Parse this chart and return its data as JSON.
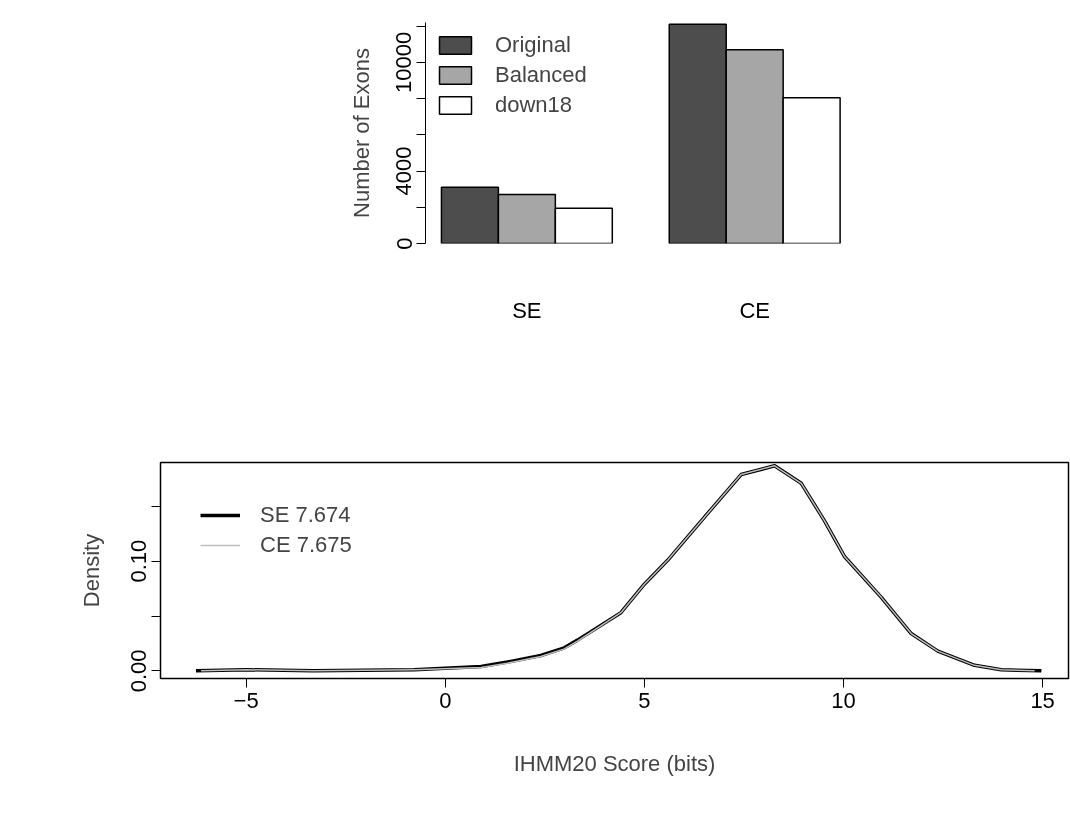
{
  "chart_data": [
    {
      "type": "bar",
      "ylabel": "Number of Exons",
      "categories": [
        "SE",
        "CE"
      ],
      "series": [
        {
          "name": "Original",
          "color": "#4d4d4d",
          "values": [
            3100,
            12100
          ]
        },
        {
          "name": "Balanced",
          "color": "#a6a6a6",
          "values": [
            2700,
            10700
          ]
        },
        {
          "name": "down18",
          "color": "#ffffff",
          "values": [
            1950,
            8050
          ]
        }
      ],
      "ylim": [
        0,
        12200
      ],
      "yticks": [
        0,
        {
          "value": 2000,
          "label": null
        },
        4000,
        {
          "value": 6000,
          "label": null
        },
        {
          "value": 8000,
          "label": null
        },
        10000,
        {
          "value": 12000,
          "label": null
        }
      ],
      "legend": "top left",
      "grid": false
    },
    {
      "type": "line",
      "xlabel": "IHMM20 Score (bits)",
      "ylabel": "Density",
      "series": [
        {
          "name": "SE 7.674",
          "color": "#000000",
          "x": [
            -6.26,
            -5.0,
            -3.32,
            -0.78,
            0.9,
            1.56,
            2.4,
            2.99,
            3.32,
            4.41,
            5.0,
            5.59,
            6.6,
            7.43,
            8.27,
            8.94,
            9.52,
            10.03,
            10.95,
            11.7,
            12.37,
            13.29,
            13.96,
            14.97
          ],
          "values": [
            0.0,
            0.001,
            0.0,
            0.001,
            0.004,
            0.008,
            0.014,
            0.021,
            0.028,
            0.053,
            0.079,
            0.101,
            0.144,
            0.179,
            0.187,
            0.171,
            0.137,
            0.104,
            0.067,
            0.034,
            0.018,
            0.005,
            0.001,
            0.0
          ]
        },
        {
          "name": "CE 7.675",
          "color": "#bebebe",
          "x": [
            -6.13,
            -5.0,
            -3.32,
            -0.78,
            0.9,
            1.56,
            2.4,
            2.99,
            3.32,
            4.41,
            5.0,
            5.59,
            6.6,
            7.43,
            8.27,
            8.94,
            9.52,
            10.03,
            10.95,
            11.7,
            12.37,
            13.29,
            13.96,
            14.8
          ],
          "values": [
            0.0,
            0.001,
            0.0,
            0.001,
            0.003,
            0.007,
            0.013,
            0.02,
            0.027,
            0.053,
            0.079,
            0.101,
            0.144,
            0.179,
            0.187,
            0.171,
            0.137,
            0.104,
            0.067,
            0.034,
            0.018,
            0.005,
            0.001,
            0.0
          ]
        }
      ],
      "xlim": [
        -7.15,
        15.65
      ],
      "ylim": [
        -0.007,
        0.19
      ],
      "xticks": [
        {
          "value": -5,
          "label": "−5"
        },
        0,
        5,
        10,
        15
      ],
      "yticks": [
        {
          "value": 0,
          "label": "0.00"
        },
        {
          "value": 0.05,
          "label": null
        },
        {
          "value": 0.1,
          "label": "0.10"
        },
        {
          "value": 0.15,
          "label": null
        }
      ],
      "legend": "top left",
      "grid": false
    }
  ]
}
